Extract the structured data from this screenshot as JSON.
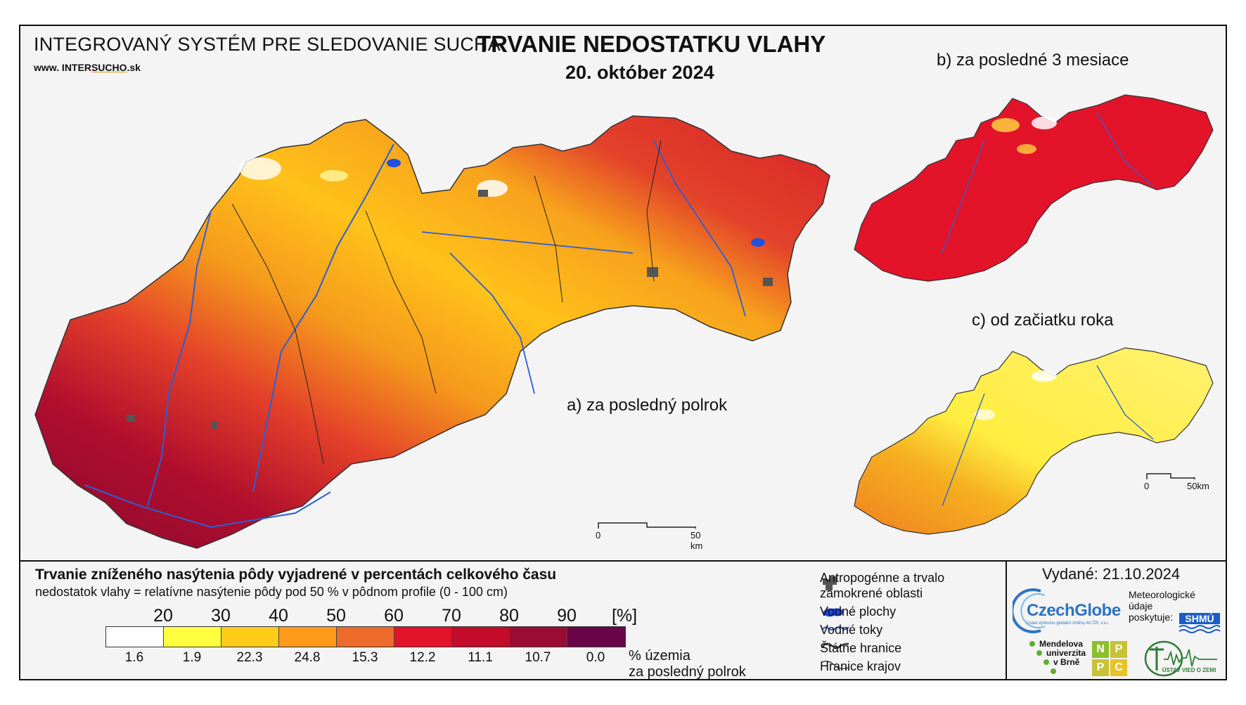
{
  "header": {
    "system_title": "INTEGROVANÝ SYSTÉM PRE SLEDOVANIE SUCHA",
    "website_prefix": "www. INTER",
    "website_highlight": "SUCHO",
    "website_suffix": ".sk",
    "main_title": "TRVANIE NEDOSTATKU VLAHY",
    "date": "20. október 2024"
  },
  "maps": {
    "a_label": "a) za posledný polrok",
    "b_label": "b) za posledné 3 mesiace",
    "c_label": "c) od začiatku roka",
    "scale_main": {
      "zero": "0",
      "end": "50 km"
    },
    "scale_small": {
      "zero": "0",
      "end": "50km"
    }
  },
  "legend": {
    "title": "Trvanie zníženého nasýtenia pôdy vyjadrené v percentách celkového času",
    "subtitle": "nedostatok vlahy = relatívne nasýtenie pôdy pod 50 % v pôdnom profile (0 - 100 cm)",
    "thresholds": [
      "20",
      "30",
      "40",
      "50",
      "60",
      "70",
      "80",
      "90",
      "[%]"
    ],
    "class_colors": [
      "#ffffff",
      "#ffff40",
      "#ffcc1a",
      "#ff9a1a",
      "#ec6a2a",
      "#e3132a",
      "#c30c2a",
      "#9a0c34",
      "#6a0648"
    ],
    "area_percent": [
      "1.6",
      "1.9",
      "22.3",
      "24.8",
      "15.3",
      "12.2",
      "11.1",
      "10.7",
      "0.0"
    ],
    "area_unit_line1": "% územia",
    "area_unit_line2": "za posledný polrok",
    "items": {
      "anthropogenic_1": "Antropogénne a trvalo",
      "anthropogenic_2": "zamokrené oblasti",
      "water_bodies": "Vodné plochy",
      "streams": "Vodné toky",
      "state_border": "Štátne hranice",
      "region_border": "Hranice krajov"
    }
  },
  "credits": {
    "issued": "Vydané: 21.10.2024",
    "czechglobe": "CzechGlobe",
    "czechglobe_sub": "Ústav výzkumu globální změny AV ČR, v.v.i.",
    "met_1": "Meteorologické",
    "met_2": "údaje",
    "met_3": "poskytuje:",
    "shmu": "SHMÚ",
    "mendel_1": "Mendelova",
    "mendel_2": "univerzita",
    "mendel_3": "v Brně",
    "npc": [
      "N",
      "P",
      "P",
      "C"
    ],
    "uvz": "ÚSTAV VIED O ZEMI"
  }
}
